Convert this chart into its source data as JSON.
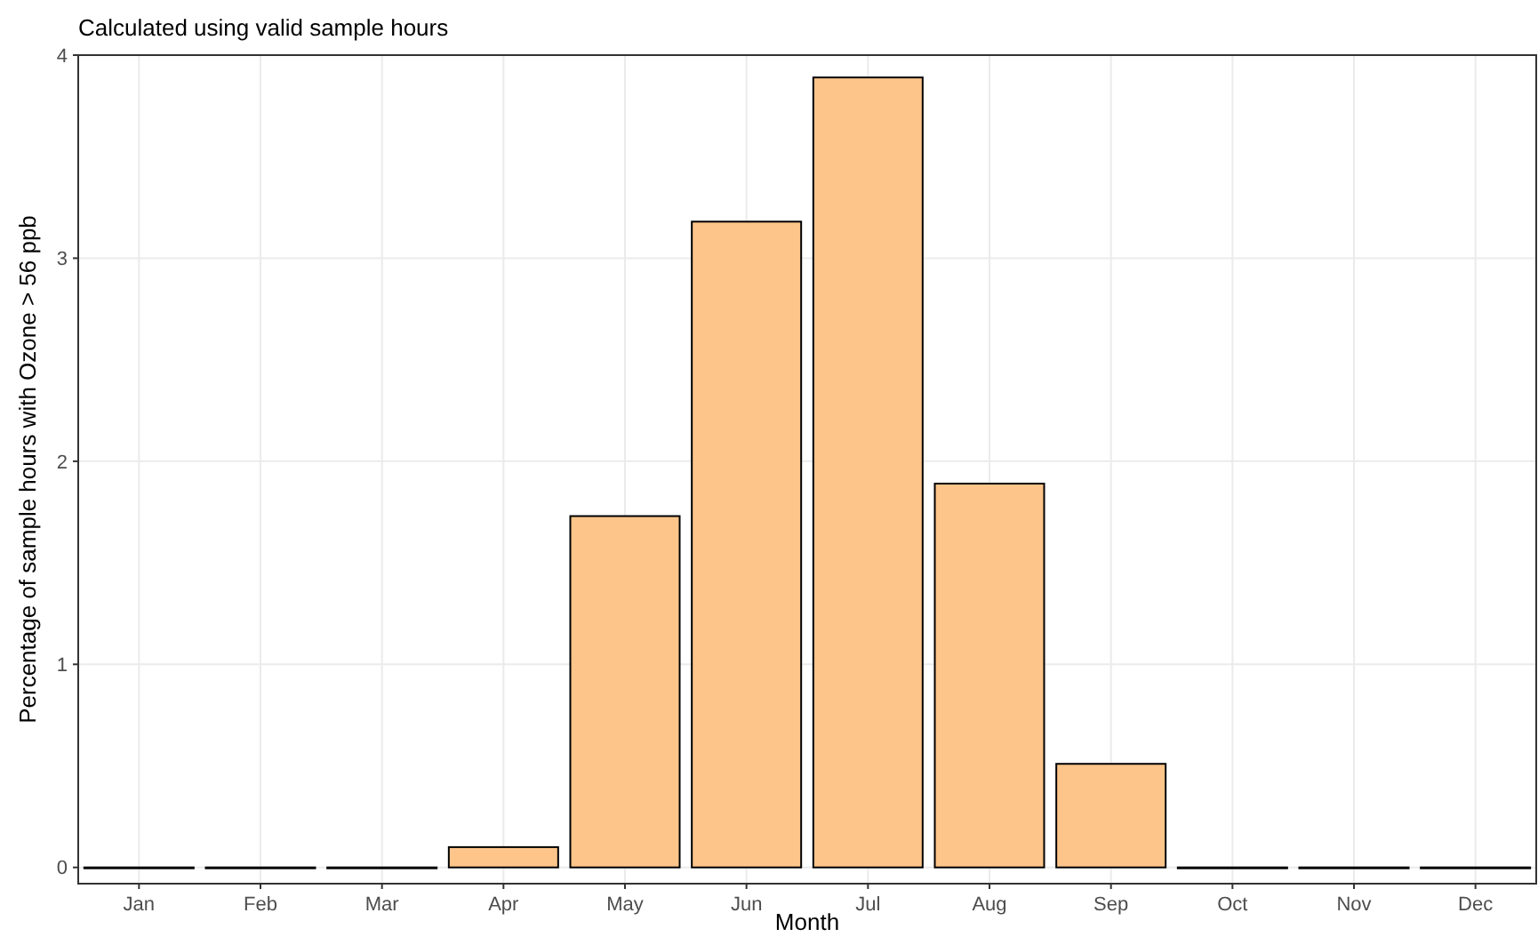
{
  "chart_data": {
    "type": "bar",
    "title": "Calculated using valid sample hours",
    "xlabel": "Month",
    "ylabel": "Percentage of sample hours with Ozone > 56 ppb",
    "categories": [
      "Jan",
      "Feb",
      "Mar",
      "Apr",
      "May",
      "Jun",
      "Jul",
      "Aug",
      "Sep",
      "Oct",
      "Nov",
      "Dec"
    ],
    "values": [
      0,
      0,
      0,
      0.1,
      1.73,
      3.18,
      3.89,
      1.89,
      0.51,
      0,
      0,
      0
    ],
    "color": "#fdc58a",
    "ylim": [
      -0.08,
      4
    ],
    "yticks": [
      0,
      1,
      2,
      3,
      4
    ],
    "grid": true
  }
}
